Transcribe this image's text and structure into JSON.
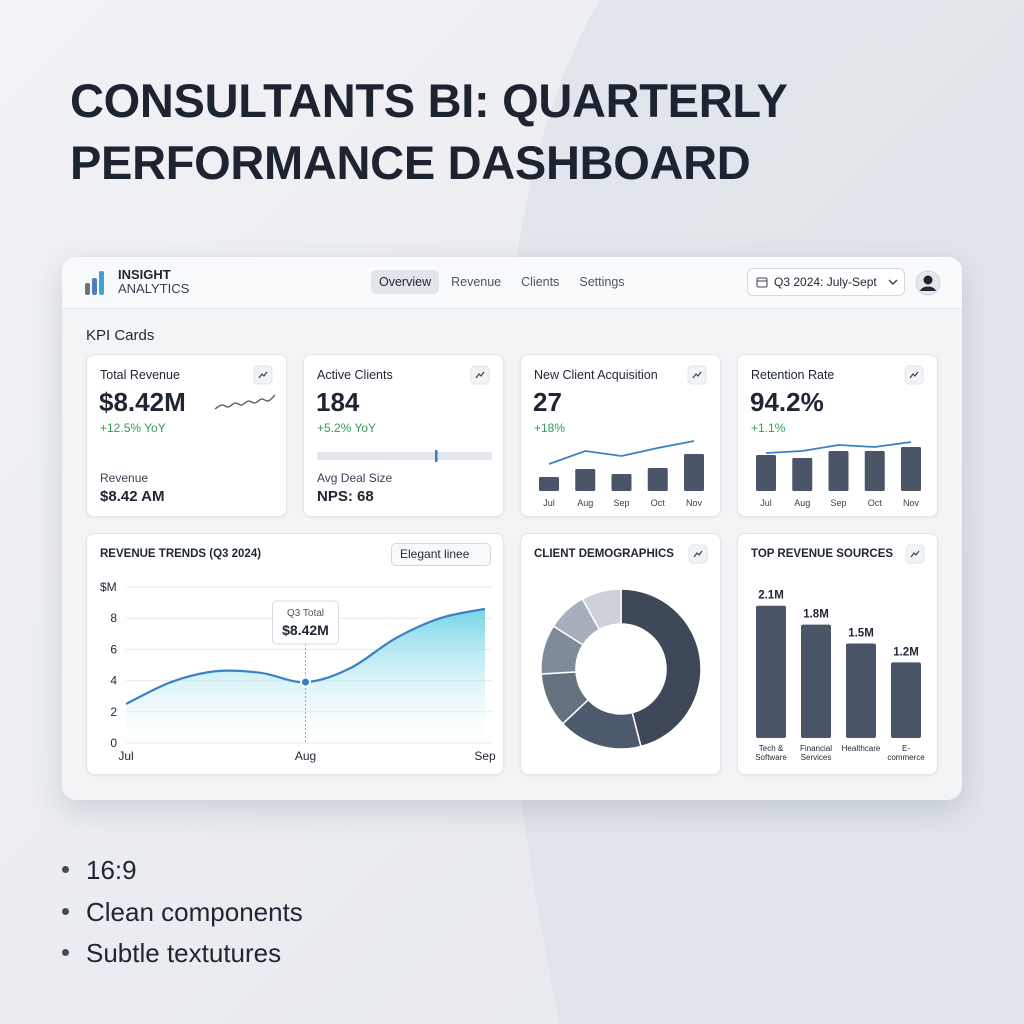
{
  "header": {
    "title": "CONSULTANTS BI: QUARTERLY PERFORMANCE DASHBOARD"
  },
  "app": {
    "brand": [
      "INSIGHT",
      "ANALYTICS"
    ],
    "nav": [
      "Overview",
      "Revenue",
      "Clients",
      "Settings"
    ],
    "period": "Q3 2024: July-Sept",
    "section": "KPI Cards"
  },
  "kpis": [
    {
      "label": "Total Revenue",
      "value": "$8.42M",
      "change": "+12.5% YoY",
      "sub_label": "Revenue",
      "sub_value": "$8.42 AM",
      "sparkline": [
        3,
        5,
        4,
        6,
        5,
        7,
        6,
        8,
        7,
        10
      ]
    },
    {
      "label": "Active Clients",
      "value": "184",
      "change": "+5.2% YoY",
      "progress": 68,
      "sub_label": "Avg Deal Size",
      "sub_value": "NPS: 68"
    },
    {
      "label": "New Client Acquisition",
      "value": "27",
      "change": "+18%",
      "categories": [
        "Jul",
        "Aug",
        "Sep",
        "Oct",
        "Nov"
      ],
      "bars": [
        14,
        22,
        17,
        23,
        37
      ],
      "line": [
        27,
        40,
        35,
        43,
        50
      ]
    },
    {
      "label": "Retention Rate",
      "value": "94.2%",
      "change": "+1.1%",
      "categories": [
        "Jul",
        "Aug",
        "Sep",
        "Oct",
        "Nov"
      ],
      "bars": [
        36,
        33,
        40,
        40,
        44
      ],
      "line": [
        38,
        40,
        46,
        44,
        49
      ]
    }
  ],
  "charts": [
    {
      "type": "line",
      "title": "REVENUE TRENDS (Q3 2024)",
      "control": "Elegant linee",
      "x": [
        0,
        0.25,
        0.5,
        0.75,
        1,
        1.25,
        1.5,
        1.75,
        2
      ],
      "xlim": [
        0,
        2
      ],
      "xticks": [
        {
          "value": 0,
          "label": "Jul"
        },
        {
          "value": 1,
          "label": "Aug"
        },
        {
          "value": 2,
          "label": "Sep"
        }
      ],
      "ylim": [
        0,
        10
      ],
      "yticks": [
        0,
        2,
        4,
        6,
        8,
        {
          "value": 10,
          "label": "$M"
        }
      ],
      "grid": true,
      "series": [
        {
          "values": [
            2.5,
            3.9,
            4.6,
            4.5,
            3.9,
            4.8,
            6.7,
            8.0,
            8.6
          ],
          "color": "#3b82c4"
        }
      ],
      "tooltip": {
        "x": 1,
        "title": "Q3 Total",
        "value": "$8.42M"
      }
    },
    {
      "type": "donut",
      "title": "CLIENT DEMOGRAPHICS",
      "values": [
        46,
        17,
        11,
        10,
        8,
        8
      ],
      "colors": [
        "#3e4859",
        "#4d596c",
        "#65717f",
        "#7f8a9a",
        "#a6aebb",
        "#cdd2da"
      ]
    },
    {
      "type": "bar",
      "title": "TOP REVENUE SOURCES",
      "categories": [
        "Tech & Software",
        "Financial Services",
        "Healthcare",
        "E-commerce"
      ],
      "values": [
        2.1,
        1.8,
        1.5,
        1.2
      ],
      "value_labels": [
        "2.1M",
        "1.8M",
        "1.5M",
        "1.2M"
      ],
      "color": "#4a5568"
    }
  ],
  "notes": [
    "16:9",
    "Clean components",
    "Subtle textutures"
  ]
}
